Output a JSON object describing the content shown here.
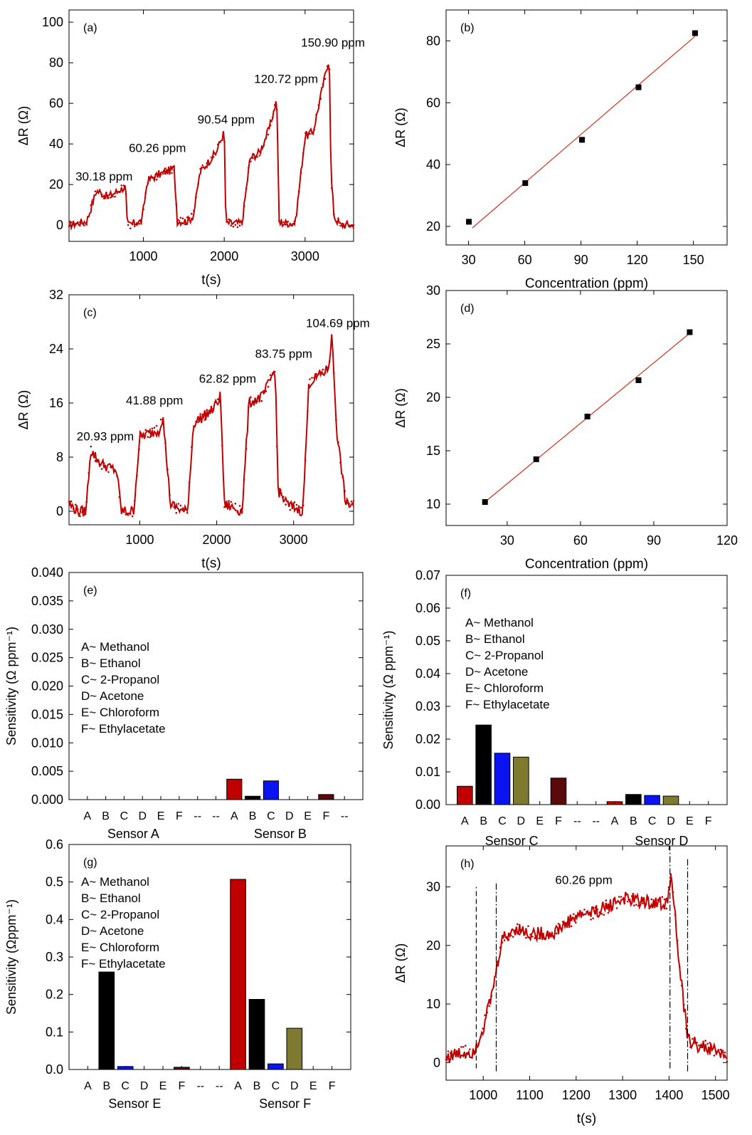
{
  "figure": {
    "series_color": "#c00000",
    "fit_color": "#d0321e",
    "bar_colors": {
      "A": "#c00000",
      "B": "#000000",
      "C": "#0a14f0",
      "D": "#7e7a30",
      "E": "#c00000",
      "F": "#5a0a0a"
    },
    "point_color": "#000000"
  },
  "chart_data": [
    {
      "id": "a",
      "type": "line",
      "panel_label": "(a)",
      "xlabel": "t(s)",
      "ylabel": "ΔR (Ω)",
      "xlim": [
        80,
        3600
      ],
      "ylim": [
        -8,
        106
      ],
      "xticks": [
        1000,
        2000,
        3000
      ],
      "yticks": [
        0,
        20,
        40,
        60,
        80,
        100
      ],
      "anchors": [
        [
          80,
          0
        ],
        [
          300,
          2
        ],
        [
          420,
          17
        ],
        [
          560,
          14
        ],
        [
          780,
          19
        ],
        [
          800,
          0
        ],
        [
          980,
          2
        ],
        [
          1050,
          22
        ],
        [
          1200,
          25
        ],
        [
          1380,
          28
        ],
        [
          1420,
          2
        ],
        [
          1560,
          2
        ],
        [
          1620,
          5
        ],
        [
          1700,
          26
        ],
        [
          1900,
          36
        ],
        [
          2000,
          46
        ],
        [
          2020,
          1
        ],
        [
          2220,
          1
        ],
        [
          2320,
          33
        ],
        [
          2440,
          36
        ],
        [
          2560,
          48
        ],
        [
          2650,
          62
        ],
        [
          2680,
          1
        ],
        [
          2880,
          1
        ],
        [
          3000,
          44
        ],
        [
          3100,
          46
        ],
        [
          3270,
          78
        ],
        [
          3300,
          82
        ],
        [
          3320,
          25
        ],
        [
          3360,
          4
        ],
        [
          3440,
          0
        ],
        [
          3600,
          0
        ]
      ],
      "noise": 2.0,
      "annotations": [
        {
          "text": "30.18 ppm",
          "x": 160,
          "y": 22
        },
        {
          "text": "60.26 ppm",
          "x": 820,
          "y": 36
        },
        {
          "text": "90.54 ppm",
          "x": 1670,
          "y": 50
        },
        {
          "text": "120.72 ppm",
          "x": 2370,
          "y": 70
        },
        {
          "text": "150.90 ppm",
          "x": 2950,
          "y": 88
        }
      ]
    },
    {
      "id": "b",
      "type": "scatter",
      "panel_label": "(b)",
      "xlabel": "Concentration (ppm)",
      "ylabel": "ΔR (Ω)",
      "xlim": [
        18,
        168
      ],
      "ylim": [
        14,
        90
      ],
      "xticks": [
        30,
        60,
        90,
        120,
        150
      ],
      "yticks": [
        20,
        40,
        60,
        80
      ],
      "x": [
        30.18,
        60.26,
        90.54,
        120.72,
        150.9
      ],
      "y": [
        21.5,
        34,
        48,
        65,
        82.5
      ],
      "fit": [
        [
          32,
          19.5
        ],
        [
          150.9,
          81.5
        ]
      ]
    },
    {
      "id": "c",
      "type": "line",
      "panel_label": "(c)",
      "xlabel": "t(s)",
      "ylabel": "ΔR (Ω)",
      "xlim": [
        80,
        3780
      ],
      "ylim": [
        -2,
        32
      ],
      "xticks": [
        1000,
        2000,
        3000
      ],
      "yticks": [
        0,
        8,
        16,
        24,
        32
      ],
      "anchors": [
        [
          80,
          1
        ],
        [
          200,
          0
        ],
        [
          300,
          0
        ],
        [
          360,
          9
        ],
        [
          500,
          7
        ],
        [
          700,
          6
        ],
        [
          760,
          0
        ],
        [
          920,
          0
        ],
        [
          1000,
          11
        ],
        [
          1250,
          12
        ],
        [
          1300,
          14
        ],
        [
          1400,
          1
        ],
        [
          1570,
          0
        ],
        [
          1620,
          0
        ],
        [
          1700,
          13
        ],
        [
          1950,
          15
        ],
        [
          2050,
          17
        ],
        [
          2100,
          1
        ],
        [
          2330,
          0
        ],
        [
          2420,
          16
        ],
        [
          2600,
          17
        ],
        [
          2760,
          21
        ],
        [
          2800,
          3
        ],
        [
          2920,
          1
        ],
        [
          3120,
          0
        ],
        [
          3200,
          19
        ],
        [
          3450,
          21
        ],
        [
          3500,
          26
        ],
        [
          3560,
          12
        ],
        [
          3680,
          1
        ],
        [
          3780,
          1
        ]
      ],
      "noise": 0.8,
      "annotations": [
        {
          "text": "20.93 ppm",
          "x": 180,
          "y": 10.5
        },
        {
          "text": "41.88 ppm",
          "x": 820,
          "y": 15.8
        },
        {
          "text": "62.82 ppm",
          "x": 1770,
          "y": 19
        },
        {
          "text": "83.75 ppm",
          "x": 2500,
          "y": 22.7
        },
        {
          "text": "104.69 ppm",
          "x": 3160,
          "y": 27.2
        }
      ]
    },
    {
      "id": "d",
      "type": "scatter",
      "panel_label": "(d)",
      "xlabel": "Concentration (ppm)",
      "ylabel": "ΔR (Ω)",
      "xlim": [
        5,
        120
      ],
      "ylim": [
        8,
        30
      ],
      "xticks": [
        30,
        60,
        90,
        120
      ],
      "yticks": [
        10,
        15,
        20,
        25,
        30
      ],
      "x": [
        20.93,
        41.88,
        62.82,
        83.75,
        104.69
      ],
      "y": [
        10.2,
        14.2,
        18.2,
        21.6,
        26.1
      ],
      "fit": [
        [
          20.93,
          10.2
        ],
        [
          104.69,
          26
        ]
      ]
    },
    {
      "id": "e",
      "type": "bar",
      "panel_label": "(e)",
      "ylabel": "Sensitivity (Ω ppm⁻¹)",
      "ylim": [
        0,
        0.04
      ],
      "yticks": [
        "0.000",
        "0.005",
        "0.010",
        "0.015",
        "0.020",
        "0.025",
        "0.030",
        "0.035",
        "0.040"
      ],
      "categories": [
        "A",
        "B",
        "C",
        "D",
        "E",
        "F",
        "--",
        "--",
        "A",
        "B",
        "C",
        "D",
        "E",
        "F",
        "--"
      ],
      "values": [
        0,
        0,
        0,
        0,
        0,
        0,
        0,
        0,
        0.0036,
        0.0006,
        0.0033,
        0,
        0,
        0.0009,
        0
      ],
      "groups": [
        "Sensor A",
        "Sensor B"
      ],
      "legend": [
        "A~  Methanol",
        "B~  Ethanol",
        "C~  2-Propanol",
        "D~  Acetone",
        "E~  Chloroform",
        "F~  Ethylacetate"
      ]
    },
    {
      "id": "f",
      "type": "bar",
      "panel_label": "(f)",
      "ylabel": "Sensitivity (Ω ppm⁻¹)",
      "ylim": [
        0,
        0.07
      ],
      "yticks": [
        "0.00",
        "0.01",
        "0.02",
        "0.03",
        "0.04",
        "0.05",
        "0.06",
        "0.07"
      ],
      "categories": [
        "A",
        "B",
        "C",
        "D",
        "E",
        "F",
        "--",
        "--",
        "A",
        "B",
        "C",
        "D",
        "E",
        "F"
      ],
      "values": [
        0.0056,
        0.0243,
        0.0157,
        0.0145,
        0,
        0.0081,
        0,
        0,
        0.0009,
        0.0031,
        0.0028,
        0.0026,
        0,
        0
      ],
      "groups": [
        "Sensor C",
        "Sensor D"
      ],
      "legend": [
        "A~  Methanol",
        "B~  Ethanol",
        "C~  2-Propanol",
        "D~  Acetone",
        "E~  Chloroform",
        "F~  Ethylacetate"
      ]
    },
    {
      "id": "g",
      "type": "bar",
      "panel_label": "(g)",
      "ylabel": "Sensitivity (Ωppm⁻¹)",
      "ylim": [
        0,
        0.6
      ],
      "yticks": [
        "0.0",
        "0.1",
        "0.2",
        "0.3",
        "0.4",
        "0.5",
        "0.6"
      ],
      "categories": [
        "A",
        "B",
        "C",
        "D",
        "E",
        "F",
        "--",
        "--",
        "A",
        "B",
        "C",
        "D",
        "E",
        "F"
      ],
      "values": [
        0,
        0.26,
        0.008,
        0,
        0,
        0.006,
        0,
        0,
        0.507,
        0.187,
        0.015,
        0.11,
        0,
        0
      ],
      "groups": [
        "Sensor E",
        "Sensor F"
      ],
      "legend": [
        "A~  Methanol",
        "B~  Ethanol",
        "C~  2-Propanol",
        "D~  Acetone",
        "E~  Chloroform",
        "F~  Ethylacetate"
      ]
    },
    {
      "id": "h",
      "type": "line",
      "panel_label": "(h)",
      "xlabel": "t(s)",
      "ylabel": "ΔR (Ω)",
      "xlim": [
        920,
        1525
      ],
      "ylim": [
        -3,
        37
      ],
      "xticks": [
        1000,
        1100,
        1200,
        1300,
        1400,
        1500
      ],
      "yticks": [
        0,
        10,
        20,
        30
      ],
      "anchors": [
        [
          920,
          1
        ],
        [
          980,
          2
        ],
        [
          1000,
          6
        ],
        [
          1020,
          12
        ],
        [
          1040,
          21
        ],
        [
          1070,
          23
        ],
        [
          1100,
          22
        ],
        [
          1150,
          22
        ],
        [
          1200,
          25
        ],
        [
          1250,
          26
        ],
        [
          1300,
          28
        ],
        [
          1395,
          27
        ],
        [
          1405,
          33
        ],
        [
          1420,
          18
        ],
        [
          1440,
          4
        ],
        [
          1460,
          3
        ],
        [
          1500,
          2
        ],
        [
          1525,
          1
        ]
      ],
      "noise": 1.2,
      "annotations": [
        {
          "text": "60.26 ppm",
          "x": 1155,
          "y": 30.5
        }
      ],
      "markers": [
        {
          "x": 985,
          "y_from": -1,
          "y_to": 30,
          "style": "dash"
        },
        {
          "x": 1028,
          "y_from": -1.5,
          "y_to": 31,
          "style": "dashdot"
        },
        {
          "x": 1402,
          "y_from": -1,
          "y_to": 37,
          "style": "dashdot"
        },
        {
          "x": 1440,
          "y_from": -1.5,
          "y_to": 35,
          "style": "dashdot"
        }
      ]
    }
  ]
}
